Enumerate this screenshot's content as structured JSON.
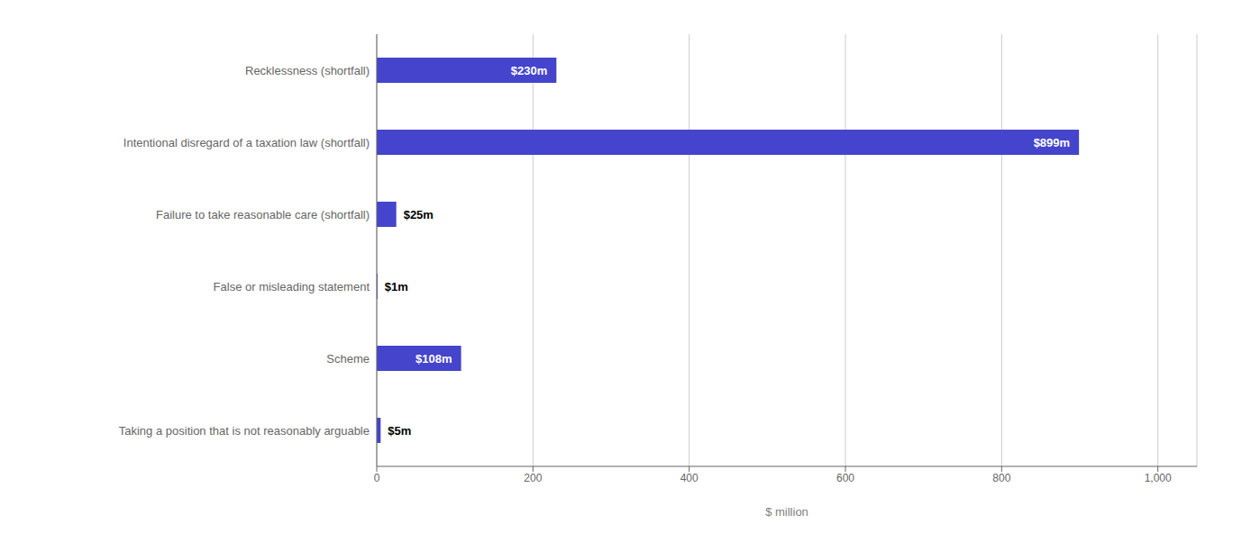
{
  "chart_data": {
    "type": "bar",
    "orientation": "horizontal",
    "categories": [
      "Taking a position that is not reasonably arguable",
      "Scheme",
      "False or misleading statement",
      "Failure to take reasonable care (shortfall)",
      "Intentional disregard of a taxation law (shortfall)",
      "Recklessness (shortfall)"
    ],
    "values": [
      5,
      108,
      1,
      25,
      899,
      230
    ],
    "value_labels": [
      "$5m",
      "$108m",
      "$1m",
      "$25m",
      "$899m",
      "$230m"
    ],
    "data_labels": true,
    "color": "#4444cc",
    "xlabel": "$ million",
    "xlim": [
      0,
      1050
    ],
    "xticks": [
      0,
      200,
      400,
      600,
      800,
      {
        "value": 1000,
        "label": "1,000"
      }
    ],
    "grid": true
  }
}
